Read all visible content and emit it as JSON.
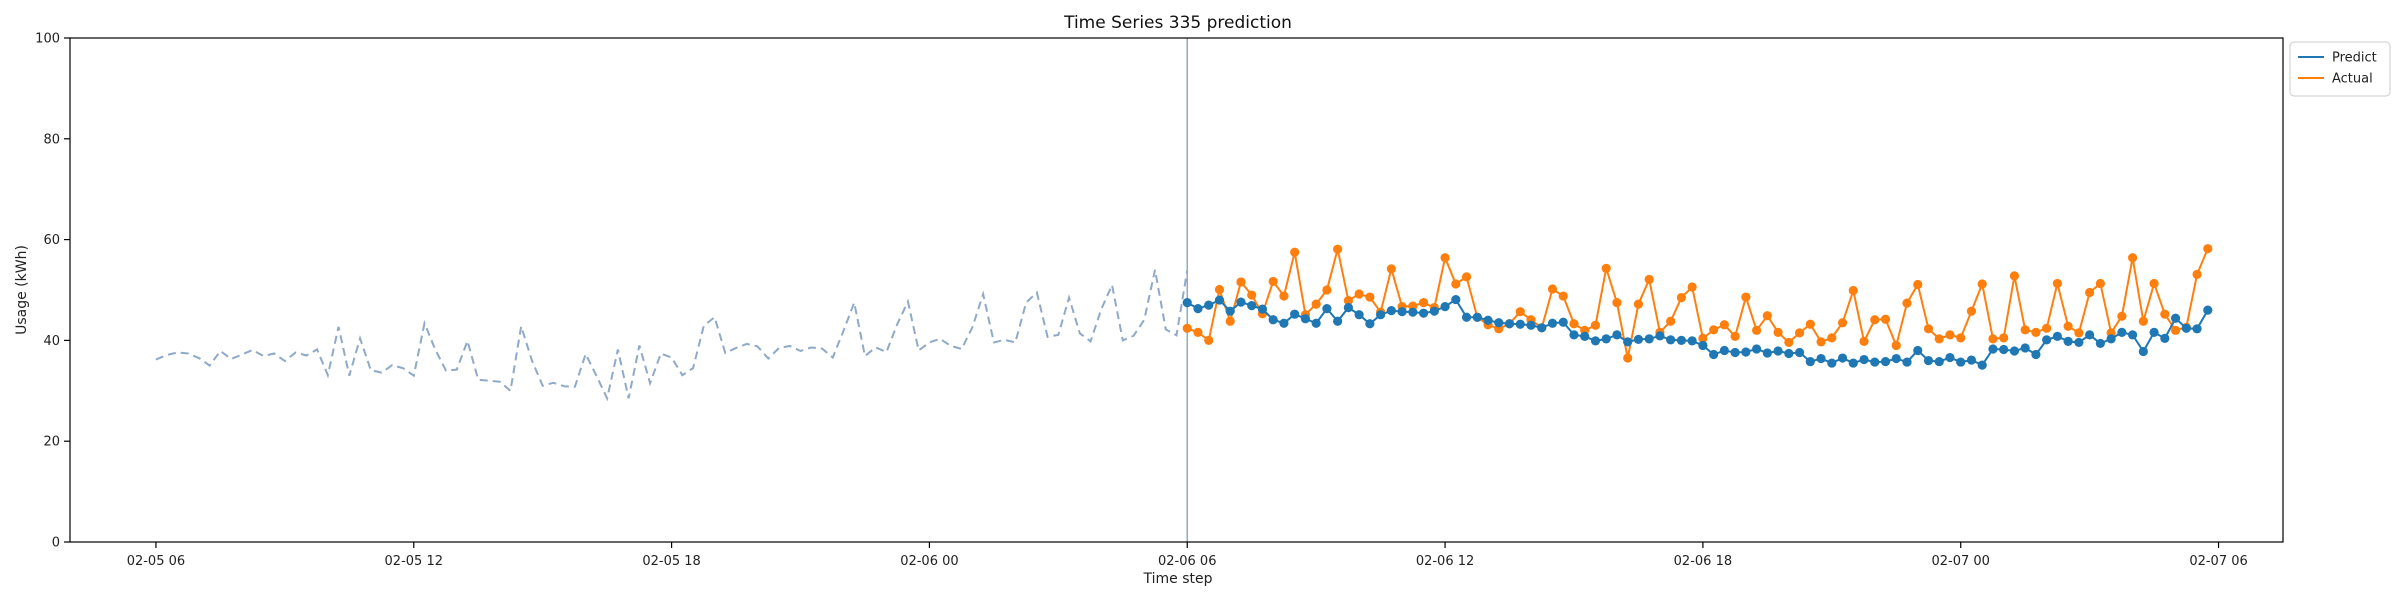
{
  "chart_data": {
    "type": "line",
    "title": "Time Series 335 prediction",
    "xlabel": "Time step",
    "ylabel": "Usage (kWh)",
    "ylim": [
      0,
      100
    ],
    "yticks": [
      0,
      20,
      40,
      60,
      80,
      100
    ],
    "xlim": [
      "2020-02-05 04:00",
      "2020-02-07 07:30"
    ],
    "xticks": [
      {
        "t": "2020-02-05 06:00",
        "label": "02-05 06"
      },
      {
        "t": "2020-02-05 12:00",
        "label": "02-05 12"
      },
      {
        "t": "2020-02-05 18:00",
        "label": "02-05 18"
      },
      {
        "t": "2020-02-06 00:00",
        "label": "02-06 00"
      },
      {
        "t": "2020-02-06 06:00",
        "label": "02-06 06"
      },
      {
        "t": "2020-02-06 12:00",
        "label": "02-06 12"
      },
      {
        "t": "2020-02-06 18:00",
        "label": "02-06 18"
      },
      {
        "t": "2020-02-07 00:00",
        "label": "02-07 00"
      },
      {
        "t": "2020-02-07 06:00",
        "label": "02-07 06"
      }
    ],
    "interval_minutes": 15,
    "history": {
      "start": "2020-02-05 06:00",
      "color": "#8fa9c8",
      "values": [
        36.2,
        37.1,
        37.6,
        37.4,
        36.5,
        35.0,
        37.9,
        36.3,
        37.2,
        38.1,
        36.9,
        37.4,
        35.9,
        37.6,
        37.0,
        38.2,
        33.1,
        42.7,
        33.0,
        40.4,
        34.1,
        33.6,
        35.1,
        34.5,
        33.0,
        43.4,
        38.2,
        34.0,
        34.2,
        39.9,
        32.2,
        32.0,
        31.8,
        30.0,
        42.8,
        36.0,
        31.0,
        31.6,
        30.9,
        30.8,
        37.3,
        33.0,
        28.5,
        38.2,
        28.5,
        39.0,
        31.5,
        37.4,
        36.6,
        33.1,
        34.5,
        42.9,
        44.6,
        37.5,
        38.5,
        39.3,
        38.8,
        36.4,
        38.5,
        38.9,
        37.9,
        38.6,
        38.4,
        36.6,
        41.9,
        47.5,
        36.9,
        38.6,
        37.7,
        43.2,
        47.7,
        38.0,
        39.6,
        40.3,
        38.9,
        38.3,
        42.6,
        49.2,
        39.6,
        40.1,
        39.6,
        47.5,
        49.5,
        40.7,
        41.1,
        48.5,
        41.4,
        39.8,
        46.2,
        51.0,
        40.0,
        40.9,
        44.1,
        54.0,
        42.2,
        41.0,
        53.9
      ]
    },
    "series": [
      {
        "name": "Predict",
        "color": "#1f77b4",
        "start": "2020-02-06 06:00",
        "values": [
          47.5,
          46.3,
          47.0,
          48.0,
          45.8,
          47.6,
          46.9,
          46.2,
          44.1,
          43.4,
          45.2,
          44.3,
          43.4,
          46.3,
          43.8,
          46.5,
          45.1,
          43.3,
          45.1,
          45.9,
          45.7,
          45.6,
          45.4,
          45.8,
          46.7,
          48.1,
          44.6,
          44.6,
          44.0,
          43.5,
          43.3,
          43.2,
          43.0,
          42.5,
          43.4,
          43.6,
          41.1,
          40.8,
          39.9,
          40.3,
          41.1,
          39.7,
          40.2,
          40.3,
          40.9,
          40.1,
          40.0,
          39.9,
          39.0,
          37.2,
          38.0,
          37.6,
          37.7,
          38.3,
          37.5,
          37.9,
          37.4,
          37.6,
          35.8,
          36.4,
          35.5,
          36.5,
          35.5,
          36.2,
          35.7,
          35.8,
          36.4,
          35.7,
          38.0,
          36.0,
          35.8,
          36.6,
          35.7,
          36.1,
          35.1,
          38.3,
          38.2,
          37.9,
          38.5,
          37.2,
          40.1,
          40.8,
          39.8,
          39.6,
          41.1,
          39.4,
          40.3,
          41.6,
          41.1,
          37.8,
          41.6,
          40.4,
          44.4,
          42.4,
          42.3,
          46.0
        ]
      },
      {
        "name": "Actual",
        "color": "#ff7f0e",
        "start": "2020-02-06 06:00",
        "values": [
          42.4,
          41.6,
          40.0,
          50.1,
          43.8,
          51.6,
          49.0,
          45.3,
          51.7,
          48.8,
          57.5,
          45.1,
          47.2,
          50.0,
          58.1,
          47.9,
          49.2,
          48.6,
          45.6,
          54.2,
          46.7,
          46.8,
          47.5,
          46.5,
          56.4,
          51.2,
          52.6,
          44.6,
          43.1,
          42.3,
          43.3,
          45.7,
          44.1,
          42.5,
          50.2,
          48.8,
          43.3,
          42.0,
          43.0,
          54.3,
          47.5,
          36.5,
          47.2,
          52.1,
          41.6,
          43.8,
          48.5,
          50.6,
          40.4,
          42.1,
          43.1,
          40.8,
          48.6,
          42.0,
          44.9,
          41.6,
          39.6,
          41.5,
          43.2,
          39.7,
          40.5,
          43.5,
          49.9,
          39.8,
          44.1,
          44.2,
          39.0,
          47.4,
          51.1,
          42.3,
          40.3,
          41.1,
          40.5,
          45.8,
          51.2,
          40.3,
          40.5,
          52.8,
          42.1,
          41.6,
          42.4,
          51.3,
          42.8,
          41.5,
          49.5,
          51.3,
          41.5,
          44.8,
          56.4,
          43.8,
          51.3,
          45.2,
          42.0,
          42.6,
          53.1,
          58.2
        ]
      }
    ],
    "split_line": {
      "t": "2020-02-06 06:00",
      "color": "#8fa9c8"
    },
    "grid": false,
    "legend": "top-right"
  }
}
